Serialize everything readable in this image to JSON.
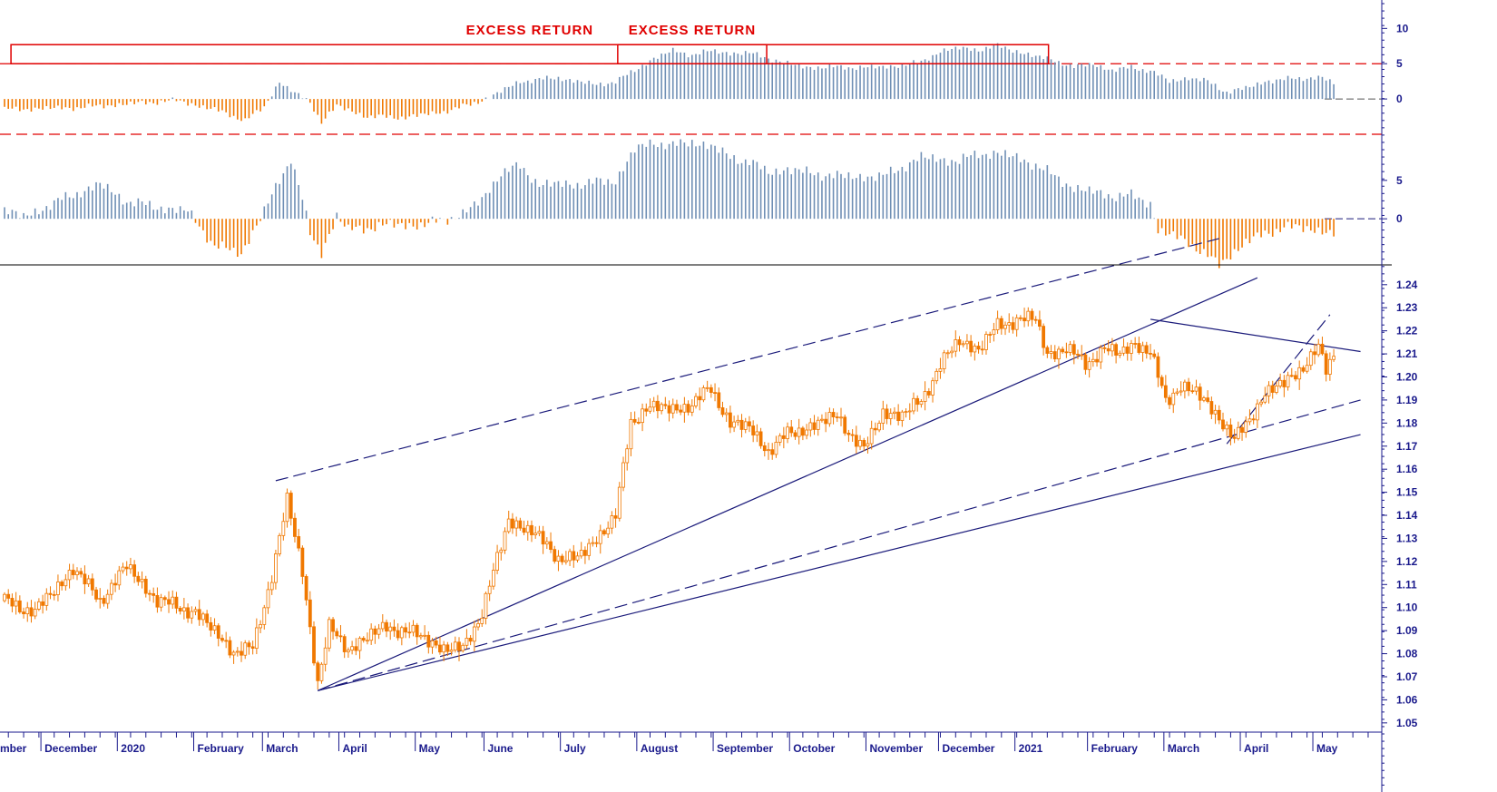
{
  "colors": {
    "candle": "#f07800",
    "positive_bar": "#6f8fb5",
    "negative_bar": "#f07800",
    "trendline": "#1a1a7a",
    "threshold": "#e00000",
    "axis": "#1a1a8c"
  },
  "chart_data": [
    {
      "panel": "top-indicator",
      "type": "bar",
      "yticks": [
        10,
        5,
        0
      ],
      "ylim": [
        -5,
        13
      ],
      "reference_lines": [
        5,
        -5
      ],
      "annotations": [
        {
          "text": "EXCESS RETURN",
          "from_month": "August",
          "to_month": "September",
          "level": 5
        },
        {
          "text": "EXCESS RETURN",
          "from_month": "December",
          "to_month": "2021",
          "level": 5
        }
      ],
      "series": [
        {
          "knots": [
            [
              0,
              -1.5
            ],
            [
              20,
              -1.2
            ],
            [
              35,
              -0.6
            ],
            [
              45,
              -0.2
            ],
            [
              55,
              -1.5
            ],
            [
              63,
              -3
            ],
            [
              68,
              -1.2
            ],
            [
              72,
              2.5
            ],
            [
              76,
              0.8
            ],
            [
              80,
              -0.5
            ],
            [
              83,
              -3.2
            ],
            [
              87,
              -1
            ],
            [
              95,
              -2.5
            ],
            [
              105,
              -2.6
            ],
            [
              115,
              -1.8
            ],
            [
              122,
              -0.8
            ],
            [
              128,
              0.5
            ],
            [
              135,
              2.5
            ],
            [
              145,
              3
            ],
            [
              155,
              2
            ],
            [
              160,
              2.5
            ],
            [
              165,
              4
            ],
            [
              170,
              5.8
            ],
            [
              175,
              6.8
            ],
            [
              180,
              6.3
            ],
            [
              185,
              6.8
            ],
            [
              190,
              6.5
            ],
            [
              195,
              6.5
            ],
            [
              200,
              5.8
            ],
            [
              205,
              5
            ],
            [
              210,
              4.5
            ],
            [
              220,
              4.5
            ],
            [
              230,
              4.5
            ],
            [
              240,
              5.2
            ],
            [
              245,
              6.8
            ],
            [
              250,
              7.2
            ],
            [
              255,
              7
            ],
            [
              260,
              7.5
            ],
            [
              265,
              6.8
            ],
            [
              270,
              6
            ],
            [
              275,
              5.5
            ],
            [
              280,
              4.5
            ],
            [
              285,
              5
            ],
            [
              290,
              4
            ],
            [
              295,
              4.5
            ],
            [
              300,
              4
            ],
            [
              305,
              2.5
            ],
            [
              310,
              3
            ],
            [
              315,
              2.5
            ],
            [
              320,
              1
            ],
            [
              325,
              1.5
            ],
            [
              330,
              2.5
            ],
            [
              340,
              3
            ],
            [
              345,
              3
            ],
            [
              348,
              2.2
            ]
          ]
        }
      ]
    },
    {
      "panel": "middle-indicator",
      "type": "bar",
      "yticks": [
        5,
        0
      ],
      "ylim": [
        -6,
        11
      ],
      "reference_lines": [
        0
      ],
      "series": [
        {
          "knots": [
            [
              0,
              1.2
            ],
            [
              5,
              0.2
            ],
            [
              15,
              2.5
            ],
            [
              25,
              4.5
            ],
            [
              32,
              2.3
            ],
            [
              40,
              1.5
            ],
            [
              48,
              1
            ],
            [
              55,
              -3.5
            ],
            [
              62,
              -4.5
            ],
            [
              68,
              1
            ],
            [
              72,
              5
            ],
            [
              75,
              8
            ],
            [
              78,
              2.5
            ],
            [
              80,
              -2
            ],
            [
              83,
              -4.5
            ],
            [
              87,
              0.5
            ],
            [
              90,
              -1.5
            ],
            [
              100,
              -0.8
            ],
            [
              110,
              -0.8
            ],
            [
              120,
              0.6
            ],
            [
              125,
              2.5
            ],
            [
              130,
              6
            ],
            [
              135,
              6.8
            ],
            [
              140,
              4.5
            ],
            [
              150,
              4.5
            ],
            [
              160,
              5
            ],
            [
              165,
              9
            ],
            [
              170,
              10
            ],
            [
              175,
              9.5
            ],
            [
              180,
              10
            ],
            [
              185,
              9.5
            ],
            [
              190,
              8
            ],
            [
              195,
              7.5
            ],
            [
              200,
              6
            ],
            [
              205,
              6.5
            ],
            [
              210,
              6
            ],
            [
              220,
              5.5
            ],
            [
              230,
              5.5
            ],
            [
              240,
              8
            ],
            [
              250,
              7.5
            ],
            [
              255,
              8.5
            ],
            [
              260,
              8.5
            ],
            [
              265,
              8
            ],
            [
              270,
              7
            ],
            [
              275,
              5.5
            ],
            [
              280,
              4
            ],
            [
              285,
              3.5
            ],
            [
              290,
              3
            ],
            [
              295,
              3
            ],
            [
              300,
              2
            ],
            [
              302,
              -1.5
            ],
            [
              310,
              -3
            ],
            [
              318,
              -6
            ],
            [
              325,
              -3
            ],
            [
              335,
              -1
            ],
            [
              345,
              -1.5
            ],
            [
              348,
              -2
            ]
          ]
        }
      ]
    },
    {
      "panel": "price",
      "type": "candlestick",
      "yticks": [
        1.24,
        1.23,
        1.22,
        1.21,
        1.2,
        1.19,
        1.18,
        1.17,
        1.16,
        1.15,
        1.14,
        1.13,
        1.12,
        1.11,
        1.1,
        1.09,
        1.08,
        1.07,
        1.06,
        1.05
      ],
      "ylim": [
        1.046,
        1.247
      ],
      "close_knots": [
        [
          0,
          1.103
        ],
        [
          8,
          1.098
        ],
        [
          18,
          1.117
        ],
        [
          25,
          1.103
        ],
        [
          32,
          1.118
        ],
        [
          40,
          1.103
        ],
        [
          50,
          1.098
        ],
        [
          60,
          1.081
        ],
        [
          65,
          1.082
        ],
        [
          70,
          1.114
        ],
        [
          74,
          1.147
        ],
        [
          78,
          1.115
        ],
        [
          82,
          1.068
        ],
        [
          85,
          1.091
        ],
        [
          90,
          1.082
        ],
        [
          100,
          1.092
        ],
        [
          110,
          1.087
        ],
        [
          115,
          1.082
        ],
        [
          120,
          1.082
        ],
        [
          125,
          1.098
        ],
        [
          132,
          1.138
        ],
        [
          138,
          1.133
        ],
        [
          145,
          1.122
        ],
        [
          150,
          1.121
        ],
        [
          155,
          1.13
        ],
        [
          160,
          1.14
        ],
        [
          164,
          1.18
        ],
        [
          168,
          1.187
        ],
        [
          175,
          1.186
        ],
        [
          180,
          1.188
        ],
        [
          185,
          1.195
        ],
        [
          190,
          1.18
        ],
        [
          195,
          1.178
        ],
        [
          200,
          1.168
        ],
        [
          205,
          1.175
        ],
        [
          210,
          1.178
        ],
        [
          218,
          1.183
        ],
        [
          225,
          1.168
        ],
        [
          230,
          1.185
        ],
        [
          235,
          1.183
        ],
        [
          240,
          1.19
        ],
        [
          245,
          1.205
        ],
        [
          250,
          1.216
        ],
        [
          255,
          1.212
        ],
        [
          260,
          1.222
        ],
        [
          265,
          1.225
        ],
        [
          270,
          1.225
        ],
        [
          273,
          1.21
        ],
        [
          278,
          1.212
        ],
        [
          283,
          1.206
        ],
        [
          288,
          1.212
        ],
        [
          292,
          1.21
        ],
        [
          296,
          1.215
        ],
        [
          300,
          1.21
        ],
        [
          304,
          1.19
        ],
        [
          308,
          1.196
        ],
        [
          312,
          1.193
        ],
        [
          318,
          1.183
        ],
        [
          322,
          1.172
        ],
        [
          326,
          1.182
        ],
        [
          330,
          1.193
        ],
        [
          335,
          1.197
        ],
        [
          340,
          1.205
        ],
        [
          344,
          1.212
        ],
        [
          346,
          1.203
        ],
        [
          348,
          1.21
        ]
      ],
      "trendlines": [
        {
          "style": "dashed",
          "from": [
            71,
            1.155
          ],
          "to": [
            318,
            1.26
          ]
        },
        {
          "style": "solid",
          "from": [
            82,
            1.064
          ],
          "to": [
            328,
            1.243
          ]
        },
        {
          "style": "dashed",
          "from": [
            82,
            1.064
          ],
          "to": [
            355,
            1.19
          ]
        },
        {
          "style": "solid",
          "from": [
            82,
            1.064
          ],
          "to": [
            355,
            1.175
          ]
        },
        {
          "style": "solid",
          "from": [
            300,
            1.225
          ],
          "to": [
            355,
            1.211
          ]
        },
        {
          "style": "dashed",
          "from": [
            320,
            1.171
          ],
          "to": [
            347,
            1.227
          ]
        }
      ]
    }
  ],
  "month_labels": [
    {
      "text": "mber",
      "idx": -7
    },
    {
      "text": "December",
      "idx": 10
    },
    {
      "text": "2020",
      "idx": 30
    },
    {
      "text": "February",
      "idx": 50
    },
    {
      "text": "March",
      "idx": 68
    },
    {
      "text": "April",
      "idx": 88
    },
    {
      "text": "May",
      "idx": 108
    },
    {
      "text": "June",
      "idx": 126
    },
    {
      "text": "July",
      "idx": 146
    },
    {
      "text": "August",
      "idx": 166
    },
    {
      "text": "September",
      "idx": 186
    },
    {
      "text": "October",
      "idx": 206
    },
    {
      "text": "November",
      "idx": 226
    },
    {
      "text": "December",
      "idx": 245
    },
    {
      "text": "2021",
      "idx": 265
    },
    {
      "text": "February",
      "idx": 284
    },
    {
      "text": "March",
      "idx": 304
    },
    {
      "text": "April",
      "idx": 324
    },
    {
      "text": "May",
      "idx": 343
    }
  ]
}
